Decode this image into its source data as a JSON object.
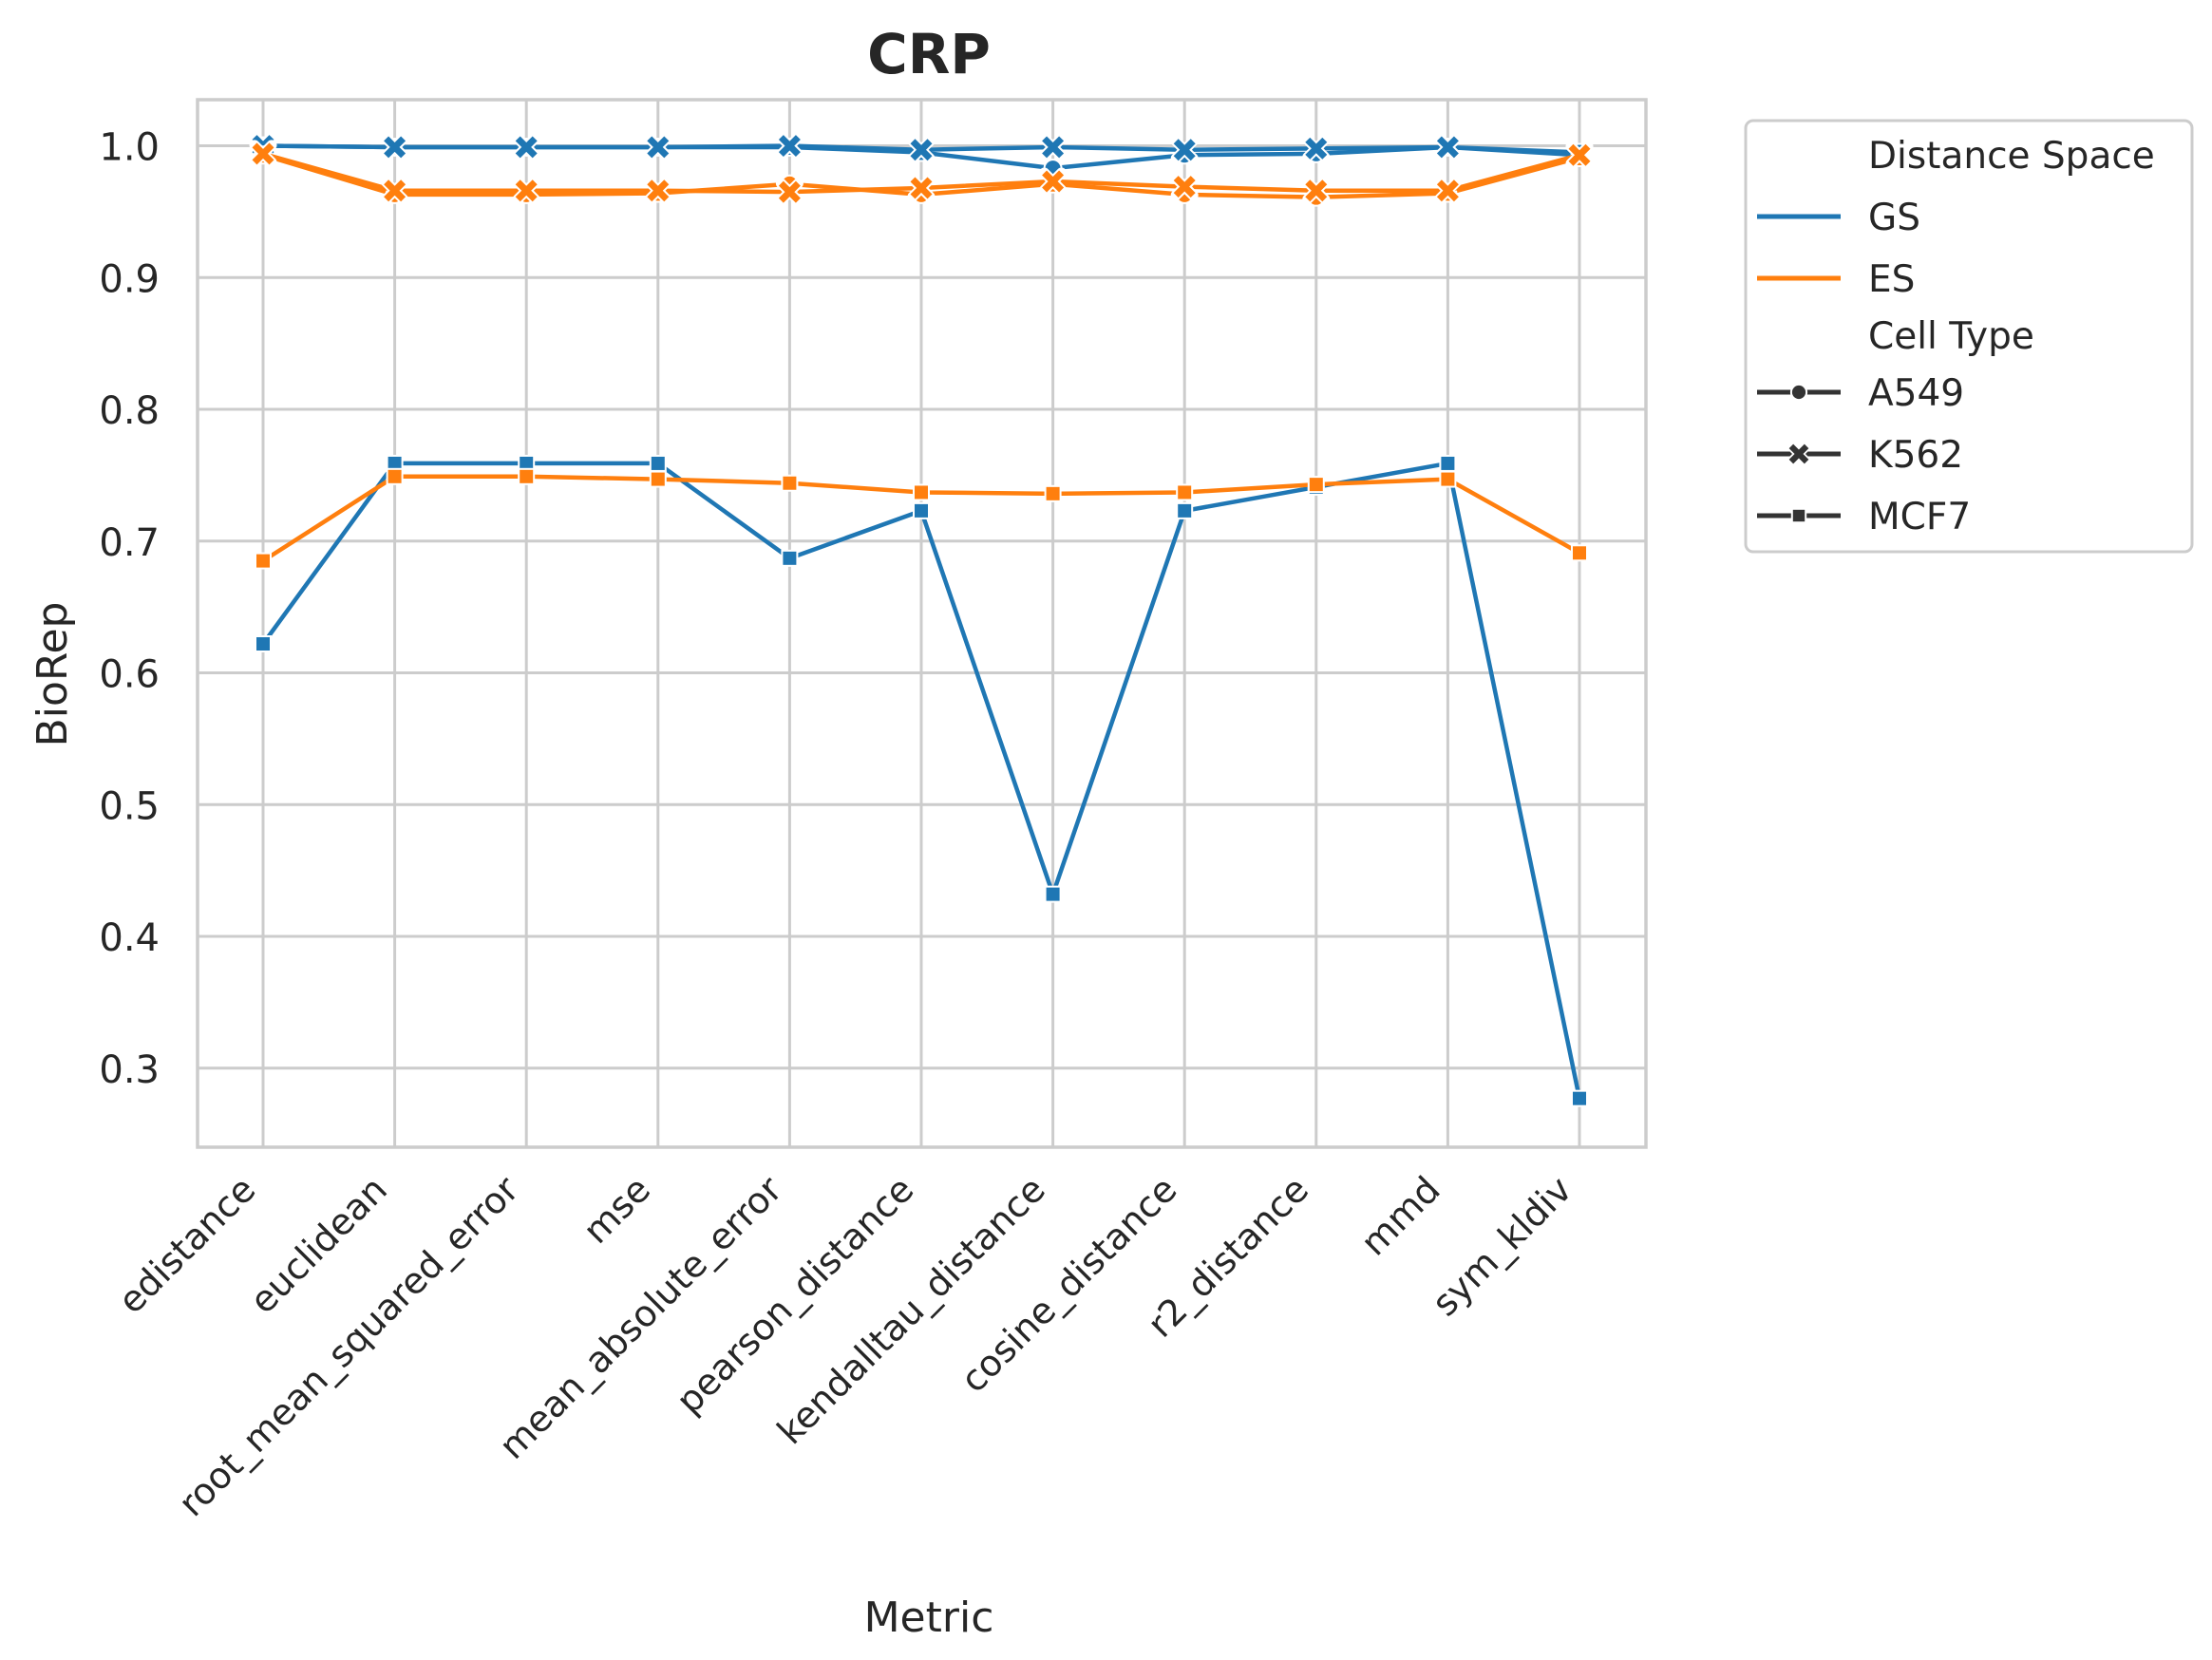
{
  "chart_data": {
    "type": "line",
    "title": "CRP",
    "xlabel": "Metric",
    "ylabel": "BioRep",
    "ylim": [
      0.24,
      1.035
    ],
    "yticks": [
      0.3,
      0.4,
      0.5,
      0.6,
      0.7,
      0.8,
      0.9,
      1.0
    ],
    "ytick_labels": [
      "0.3",
      "0.4",
      "0.5",
      "0.6",
      "0.7",
      "0.8",
      "0.9",
      "1.0"
    ],
    "grid": true,
    "categories": [
      "edistance",
      "euclidean",
      "root_mean_squared_error",
      "mse",
      "mean_absolute_error",
      "pearson_distance",
      "kendalltau_distance",
      "cosine_distance",
      "r2_distance",
      "mmd",
      "sym_kldiv"
    ],
    "colors": {
      "GS": "#1f77b4",
      "ES": "#ff7f0e"
    },
    "legend": {
      "placement": "outside upper right",
      "hue_title": "Distance Space",
      "hue_entries": [
        "GS",
        "ES"
      ],
      "style_title": "Cell Type",
      "style_entries": [
        "A549",
        "K562",
        "MCF7"
      ]
    },
    "series": [
      {
        "space": "GS",
        "cell": "A549",
        "marker": "circle",
        "values": [
          1.0,
          0.999,
          0.999,
          0.999,
          0.999,
          0.995,
          0.983,
          0.993,
          0.994,
          0.999,
          0.995
        ]
      },
      {
        "space": "GS",
        "cell": "K562",
        "marker": "x",
        "values": [
          1.0,
          0.999,
          0.999,
          0.999,
          1.0,
          0.997,
          0.999,
          0.997,
          0.998,
          0.999,
          0.993
        ]
      },
      {
        "space": "GS",
        "cell": "MCF7",
        "marker": "square",
        "values": [
          0.622,
          0.759,
          0.759,
          0.759,
          0.687,
          0.723,
          0.432,
          0.723,
          0.741,
          0.759,
          0.277
        ]
      },
      {
        "space": "ES",
        "cell": "A549",
        "marker": "circle",
        "values": [
          0.993,
          0.963,
          0.963,
          0.964,
          0.971,
          0.963,
          0.971,
          0.963,
          0.961,
          0.964,
          0.991
        ]
      },
      {
        "space": "ES",
        "cell": "K562",
        "marker": "x",
        "values": [
          0.994,
          0.966,
          0.966,
          0.966,
          0.965,
          0.968,
          0.973,
          0.969,
          0.966,
          0.966,
          0.993
        ]
      },
      {
        "space": "ES",
        "cell": "MCF7",
        "marker": "square",
        "values": [
          0.685,
          0.749,
          0.749,
          0.747,
          0.744,
          0.737,
          0.736,
          0.737,
          0.743,
          0.747,
          0.691
        ]
      }
    ]
  }
}
